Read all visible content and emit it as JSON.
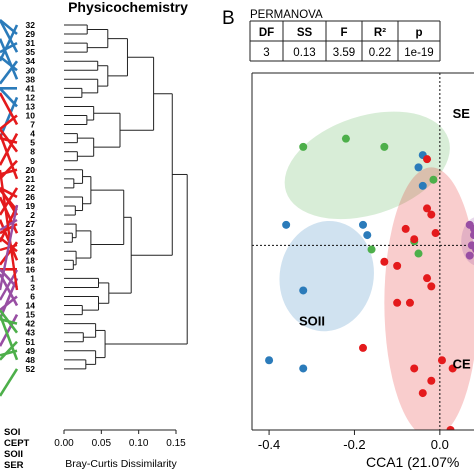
{
  "panel_b_letter": "B",
  "left": {
    "title": "Physicochemistry",
    "xlabel": "Bray-Curtis Dissimilarity",
    "xticks": [
      "0.00",
      "0.05",
      "0.10",
      "0.15"
    ],
    "leaf_labels": [
      "32",
      "29",
      "31",
      "35",
      "34",
      "30",
      "38",
      "41",
      "12",
      "13",
      "10",
      "7",
      "4",
      "5",
      "8",
      "9",
      "20",
      "21",
      "22",
      "26",
      "19",
      "2",
      "27",
      "23",
      "25",
      "24",
      "18",
      "16",
      "1",
      "3",
      "6",
      "14",
      "15",
      "42",
      "43",
      "51",
      "49",
      "48",
      "52"
    ],
    "legend": [
      "SOI",
      "CEPT",
      "SOII",
      "SER"
    ],
    "line_colors": {
      "blue": "#2b7bba",
      "red": "#e41a1c",
      "purple": "#984ea3",
      "green": "#4daf4a"
    }
  },
  "permanova": {
    "title": "PERMANOVA",
    "headers": [
      "DF",
      "SS",
      "F",
      "R²",
      "p"
    ],
    "values": [
      "3",
      "0.13",
      "3.59",
      "0.22",
      "1e-19"
    ]
  },
  "chart_data": {
    "type": "scatter",
    "xlabel": "CCA1 (21.07%",
    "xticks": [
      "-0.4",
      "-0.2",
      "0.0"
    ],
    "xlim": [
      -0.44,
      0.08
    ],
    "ylim": [
      -0.9,
      0.84
    ],
    "groups": [
      {
        "name": "SER",
        "color": "#4daf4a",
        "points": [
          [
            -0.32,
            0.48
          ],
          [
            -0.22,
            0.52
          ],
          [
            -0.13,
            0.48
          ],
          [
            -0.015,
            0.32
          ],
          [
            -0.06,
            0.02
          ],
          [
            -0.16,
            -0.02
          ],
          [
            -0.05,
            -0.04
          ]
        ]
      },
      {
        "name": "SOII",
        "color": "#2b7bba",
        "points": [
          [
            -0.04,
            0.44
          ],
          [
            -0.36,
            0.1
          ],
          [
            -0.32,
            -0.22
          ],
          [
            -0.4,
            -0.56
          ],
          [
            -0.32,
            -0.6
          ],
          [
            -0.18,
            0.1
          ],
          [
            -0.17,
            0.05
          ],
          [
            -0.05,
            0.38
          ],
          [
            -0.04,
            0.29
          ]
        ]
      },
      {
        "name": "CEPT",
        "color": "#e41a1c",
        "points": [
          [
            -0.03,
            0.42
          ],
          [
            -0.03,
            0.18
          ],
          [
            -0.02,
            0.15
          ],
          [
            -0.06,
            0.03
          ],
          [
            -0.08,
            0.08
          ],
          [
            -0.01,
            0.06
          ],
          [
            -0.13,
            -0.08
          ],
          [
            -0.1,
            -0.1
          ],
          [
            -0.03,
            -0.16
          ],
          [
            -0.02,
            -0.2
          ],
          [
            -0.07,
            -0.28
          ],
          [
            -0.1,
            -0.28
          ],
          [
            -0.06,
            -0.6
          ],
          [
            -0.02,
            -0.66
          ],
          [
            -0.04,
            -0.72
          ],
          [
            -0.18,
            -0.5
          ],
          [
            0.005,
            -0.56
          ],
          [
            0.03,
            -0.6
          ],
          [
            0.025,
            -0.9
          ]
        ]
      },
      {
        "name": "SOI",
        "color": "#984ea3",
        "points": [
          [
            0.07,
            0.1
          ],
          [
            0.08,
            0.05
          ],
          [
            0.075,
            0.0
          ],
          [
            0.085,
            -0.02
          ],
          [
            0.07,
            -0.05
          ],
          [
            0.08,
            0.08
          ]
        ]
      }
    ],
    "ellipses": [
      {
        "group": "SER",
        "cx": -0.17,
        "cy": 0.39,
        "rx": 0.2,
        "ry": 0.24,
        "angle_deg": -18,
        "color": "#4daf4a"
      },
      {
        "group": "SOII",
        "cx": -0.265,
        "cy": -0.15,
        "rx": 0.11,
        "ry": 0.27,
        "angle_deg": 10,
        "color": "#2b7bba"
      },
      {
        "group": "CEPT",
        "cx": -0.02,
        "cy": -0.28,
        "rx": 0.11,
        "ry": 0.66,
        "angle_deg": 0,
        "color": "#e41a1c"
      },
      {
        "group": "SOI",
        "cx": 0.09,
        "cy": 0.02,
        "rx": 0.04,
        "ry": 0.12,
        "angle_deg": 0,
        "color": "#984ea3"
      }
    ],
    "group_labels": [
      {
        "text": "SE",
        "x": 0.03,
        "y": 0.62
      },
      {
        "text": "SOII",
        "x": -0.33,
        "y": -0.39
      },
      {
        "text": "CE",
        "x": 0.03,
        "y": -0.6
      }
    ]
  }
}
